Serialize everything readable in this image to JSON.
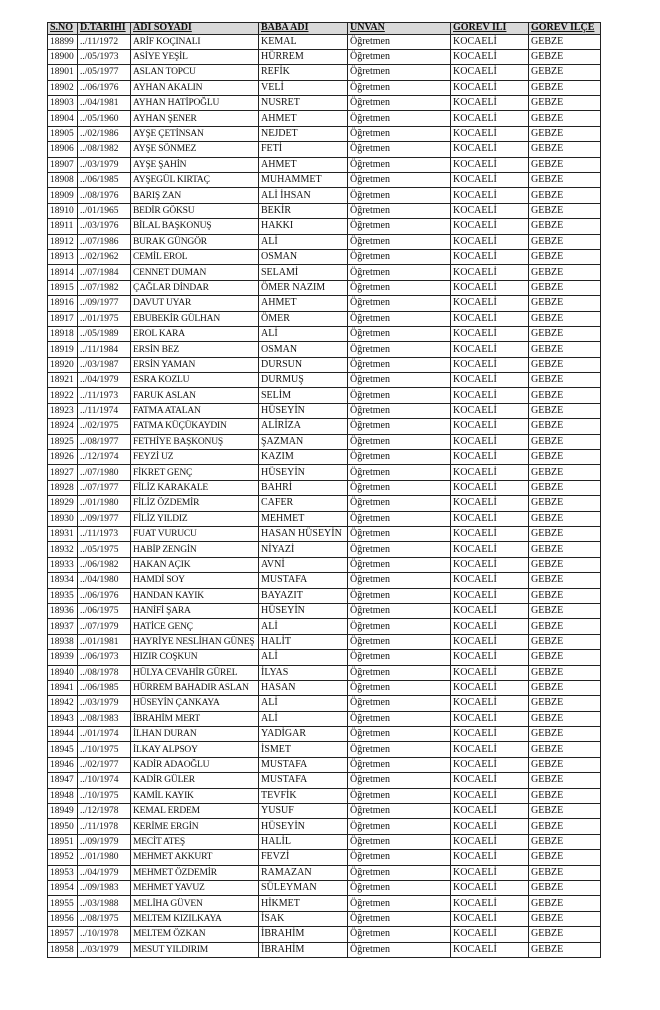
{
  "table": {
    "headers": [
      "S.NO",
      "D.TARİHİ",
      "ADI SOYADI",
      "BABA ADI",
      "UNVAN",
      "GOREV İLİ",
      "GOREV İLÇE"
    ],
    "rows": [
      [
        "18899",
        "../11/1972",
        "ARİF KOÇINALI",
        "KEMAL",
        "Öğretmen",
        "KOCAELİ",
        "GEBZE"
      ],
      [
        "18900",
        "../05/1973",
        "ASİYE YEŞİL",
        "HÜRREM",
        "Öğretmen",
        "KOCAELİ",
        "GEBZE"
      ],
      [
        "18901",
        "../05/1977",
        "ASLAN TOPCU",
        "REFİK",
        "Öğretmen",
        "KOCAELİ",
        "GEBZE"
      ],
      [
        "18902",
        "../06/1976",
        "AYHAN AKALIN",
        "VELİ",
        "Öğretmen",
        "KOCAELİ",
        "GEBZE"
      ],
      [
        "18903",
        "../04/1981",
        "AYHAN HATİPOĞLU",
        "NUSRET",
        "Öğretmen",
        "KOCAELİ",
        "GEBZE"
      ],
      [
        "18904",
        "../05/1960",
        "AYHAN ŞENER",
        "AHMET",
        "Öğretmen",
        "KOCAELİ",
        "GEBZE"
      ],
      [
        "18905",
        "../02/1986",
        "AYŞE ÇETİNSAN",
        "NEJDET",
        "Öğretmen",
        "KOCAELİ",
        "GEBZE"
      ],
      [
        "18906",
        "../08/1982",
        "AYŞE SÖNMEZ",
        "FETİ",
        "Öğretmen",
        "KOCAELİ",
        "GEBZE"
      ],
      [
        "18907",
        "../03/1979",
        "AYŞE ŞAHİN",
        "AHMET",
        "Öğretmen",
        "KOCAELİ",
        "GEBZE"
      ],
      [
        "18908",
        "../06/1985",
        "AYŞEGÜL KIRTAÇ",
        "MUHAMMET",
        "Öğretmen",
        "KOCAELİ",
        "GEBZE"
      ],
      [
        "18909",
        "../08/1976",
        "BARIŞ ZAN",
        "ALİ İHSAN",
        "Öğretmen",
        "KOCAELİ",
        "GEBZE"
      ],
      [
        "18910",
        "../01/1965",
        "BEDİR GÖKSU",
        "BEKİR",
        "Öğretmen",
        "KOCAELİ",
        "GEBZE"
      ],
      [
        "18911",
        "../03/1976",
        "BİLAL BAŞKONUŞ",
        "HAKKI",
        "Öğretmen",
        "KOCAELİ",
        "GEBZE"
      ],
      [
        "18912",
        "../07/1986",
        "BURAK GÜNGÖR",
        "ALİ",
        "Öğretmen",
        "KOCAELİ",
        "GEBZE"
      ],
      [
        "18913",
        "../02/1962",
        "CEMİL EROL",
        "OSMAN",
        "Öğretmen",
        "KOCAELİ",
        "GEBZE"
      ],
      [
        "18914",
        "../07/1984",
        "CENNET DUMAN",
        "SELAMİ",
        "Öğretmen",
        "KOCAELİ",
        "GEBZE"
      ],
      [
        "18915",
        "../07/1982",
        "ÇAĞLAR DİNDAR",
        "ÖMER NAZIM",
        "Öğretmen",
        "KOCAELİ",
        "GEBZE"
      ],
      [
        "18916",
        "../09/1977",
        "DAVUT UYAR",
        "AHMET",
        "Öğretmen",
        "KOCAELİ",
        "GEBZE"
      ],
      [
        "18917",
        "../01/1975",
        "EBUBEKİR GÜLHAN",
        "ÖMER",
        "Öğretmen",
        "KOCAELİ",
        "GEBZE"
      ],
      [
        "18918",
        "../05/1989",
        "EROL KARA",
        "ALİ",
        "Öğretmen",
        "KOCAELİ",
        "GEBZE"
      ],
      [
        "18919",
        "../11/1984",
        "ERSİN BEZ",
        "OSMAN",
        "Öğretmen",
        "KOCAELİ",
        "GEBZE"
      ],
      [
        "18920",
        "../03/1987",
        "ERSİN YAMAN",
        "DURSUN",
        "Öğretmen",
        "KOCAELİ",
        "GEBZE"
      ],
      [
        "18921",
        "../04/1979",
        "ESRA KOZLU",
        "DURMUŞ",
        "Öğretmen",
        "KOCAELİ",
        "GEBZE"
      ],
      [
        "18922",
        "../11/1973",
        "FARUK ASLAN",
        "SELİM",
        "Öğretmen",
        "KOCAELİ",
        "GEBZE"
      ],
      [
        "18923",
        "../11/1974",
        "FATMA ATALAN",
        "HÜSEYİN",
        "Öğretmen",
        "KOCAELİ",
        "GEBZE"
      ],
      [
        "18924",
        "../02/1975",
        "FATMA KÜÇÜKAYDIN",
        "ALİRİZA",
        "Öğretmen",
        "KOCAELİ",
        "GEBZE"
      ],
      [
        "18925",
        "../08/1977",
        "FETHİYE BAŞKONUŞ",
        "ŞAZMAN",
        "Öğretmen",
        "KOCAELİ",
        "GEBZE"
      ],
      [
        "18926",
        "../12/1974",
        "FEYZİ UZ",
        "KAZIM",
        "Öğretmen",
        "KOCAELİ",
        "GEBZE"
      ],
      [
        "18927",
        "../07/1980",
        "FİKRET GENÇ",
        "HÜSEYİN",
        "Öğretmen",
        "KOCAELİ",
        "GEBZE"
      ],
      [
        "18928",
        "../07/1977",
        "FİLİZ KARAKALE",
        "BAHRİ",
        "Öğretmen",
        "KOCAELİ",
        "GEBZE"
      ],
      [
        "18929",
        "../01/1980",
        "FİLİZ ÖZDEMİR",
        "CAFER",
        "Öğretmen",
        "KOCAELİ",
        "GEBZE"
      ],
      [
        "18930",
        "../09/1977",
        "FİLİZ YILDIZ",
        "MEHMET",
        "Öğretmen",
        "KOCAELİ",
        "GEBZE"
      ],
      [
        "18931",
        "../11/1973",
        "FUAT VURUCU",
        "HASAN HÜSEYİN",
        "Öğretmen",
        "KOCAELİ",
        "GEBZE"
      ],
      [
        "18932",
        "../05/1975",
        "HABİP ZENGİN",
        "NİYAZİ",
        "Öğretmen",
        "KOCAELİ",
        "GEBZE"
      ],
      [
        "18933",
        "../06/1982",
        "HAKAN AÇIK",
        "AVNİ",
        "Öğretmen",
        "KOCAELİ",
        "GEBZE"
      ],
      [
        "18934",
        "../04/1980",
        "HAMDİ SOY",
        "MUSTAFA",
        "Öğretmen",
        "KOCAELİ",
        "GEBZE"
      ],
      [
        "18935",
        "../06/1976",
        "HANDAN KAYIK",
        "BAYAZIT",
        "Öğretmen",
        "KOCAELİ",
        "GEBZE"
      ],
      [
        "18936",
        "../06/1975",
        "HANİFİ ŞARA",
        "HÜSEYİN",
        "Öğretmen",
        "KOCAELİ",
        "GEBZE"
      ],
      [
        "18937",
        "../07/1979",
        "HATİCE GENÇ",
        "ALİ",
        "Öğretmen",
        "KOCAELİ",
        "GEBZE"
      ],
      [
        "18938",
        "../01/1981",
        "HAYRİYE NESLİHAN GÜNEŞ",
        "HALİT",
        "Öğretmen",
        "KOCAELİ",
        "GEBZE"
      ],
      [
        "18939",
        "../06/1973",
        "HIZIR COŞKUN",
        "ALİ",
        "Öğretmen",
        "KOCAELİ",
        "GEBZE"
      ],
      [
        "18940",
        "../08/1978",
        "HÜLYA CEVAHİR GÜREL",
        "İLYAS",
        "Öğretmen",
        "KOCAELİ",
        "GEBZE"
      ],
      [
        "18941",
        "../06/1985",
        "HÜRREM BAHADIR ASLAN",
        "HASAN",
        "Öğretmen",
        "KOCAELİ",
        "GEBZE"
      ],
      [
        "18942",
        "../03/1979",
        "HÜSEYİN ÇANKAYA",
        "ALİ",
        "Öğretmen",
        "KOCAELİ",
        "GEBZE"
      ],
      [
        "18943",
        "../08/1983",
        "İBRAHİM MERT",
        "ALİ",
        "Öğretmen",
        "KOCAELİ",
        "GEBZE"
      ],
      [
        "18944",
        "../01/1974",
        "İLHAN DURAN",
        "YADİGAR",
        "Öğretmen",
        "KOCAELİ",
        "GEBZE"
      ],
      [
        "18945",
        "../10/1975",
        "İLKAY ALPSOY",
        "İSMET",
        "Öğretmen",
        "KOCAELİ",
        "GEBZE"
      ],
      [
        "18946",
        "../02/1977",
        "KADİR ADAOĞLU",
        "MUSTAFA",
        "Öğretmen",
        "KOCAELİ",
        "GEBZE"
      ],
      [
        "18947",
        "../10/1974",
        "KADİR GÜLER",
        "MUSTAFA",
        "Öğretmen",
        "KOCAELİ",
        "GEBZE"
      ],
      [
        "18948",
        "../10/1975",
        "KAMİL KAYIK",
        "TEVFİK",
        "Öğretmen",
        "KOCAELİ",
        "GEBZE"
      ],
      [
        "18949",
        "../12/1978",
        "KEMAL ERDEM",
        "YUSUF",
        "Öğretmen",
        "KOCAELİ",
        "GEBZE"
      ],
      [
        "18950",
        "../11/1978",
        "KERİME ERGİN",
        "HÜSEYİN",
        "Öğretmen",
        "KOCAELİ",
        "GEBZE"
      ],
      [
        "18951",
        "../09/1979",
        "MECİT ATEŞ",
        "HALİL",
        "Öğretmen",
        "KOCAELİ",
        "GEBZE"
      ],
      [
        "18952",
        "../01/1980",
        "MEHMET AKKURT",
        "FEVZİ",
        "Öğretmen",
        "KOCAELİ",
        "GEBZE"
      ],
      [
        "18953",
        "../04/1979",
        "MEHMET ÖZDEMİR",
        "RAMAZAN",
        "Öğretmen",
        "KOCAELİ",
        "GEBZE"
      ],
      [
        "18954",
        "../09/1983",
        "MEHMET YAVUZ",
        "SÜLEYMAN",
        "Öğretmen",
        "KOCAELİ",
        "GEBZE"
      ],
      [
        "18955",
        "../03/1988",
        "MELİHA GÜVEN",
        "HİKMET",
        "Öğretmen",
        "KOCAELİ",
        "GEBZE"
      ],
      [
        "18956",
        "../08/1975",
        "MELTEM KIZILKAYA",
        "İSAK",
        "Öğretmen",
        "KOCAELİ",
        "GEBZE"
      ],
      [
        "18957",
        "../10/1978",
        "MELTEM ÖZKAN",
        "İBRAHİM",
        "Öğretmen",
        "KOCAELİ",
        "GEBZE"
      ],
      [
        "18958",
        "../03/1979",
        "MESUT YILDIRIM",
        "İBRAHİM",
        "Öğretmen",
        "KOCAELİ",
        "GEBZE"
      ]
    ]
  }
}
